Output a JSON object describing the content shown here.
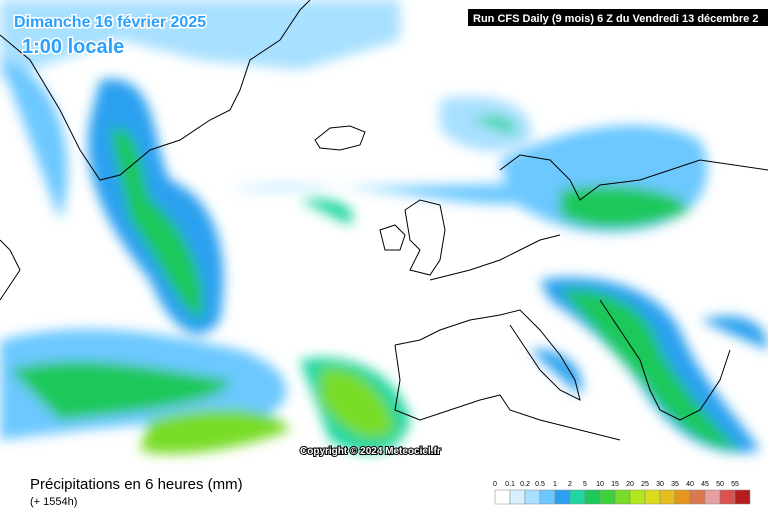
{
  "header": {
    "title": "Dimanche 16 février 2025",
    "time": "1:00 locale",
    "run": "Run CFS Daily (9 mois) 6 Z du Vendredi 13 décembre 2"
  },
  "copyright": "Copyright © 2024 Meteociel.fr",
  "footer": {
    "title": "Précipitations en 6 heures (mm)",
    "lead": "(+ 1554h)"
  },
  "legend": {
    "ticks": [
      0,
      0.1,
      0.2,
      0.5,
      1,
      2,
      5,
      10,
      15,
      20,
      25,
      30,
      35,
      40,
      45,
      50,
      55
    ],
    "colors": [
      "#ffffff",
      "#d6f0ff",
      "#a8e0ff",
      "#6cc8ff",
      "#2ca0f0",
      "#1ed6a0",
      "#1ec85a",
      "#3cd23c",
      "#78dc28",
      "#b4e61e",
      "#dcdc1e",
      "#e6be1e",
      "#e6961e",
      "#dc7850",
      "#e6a0a0",
      "#dc5050",
      "#b41e1e"
    ]
  }
}
